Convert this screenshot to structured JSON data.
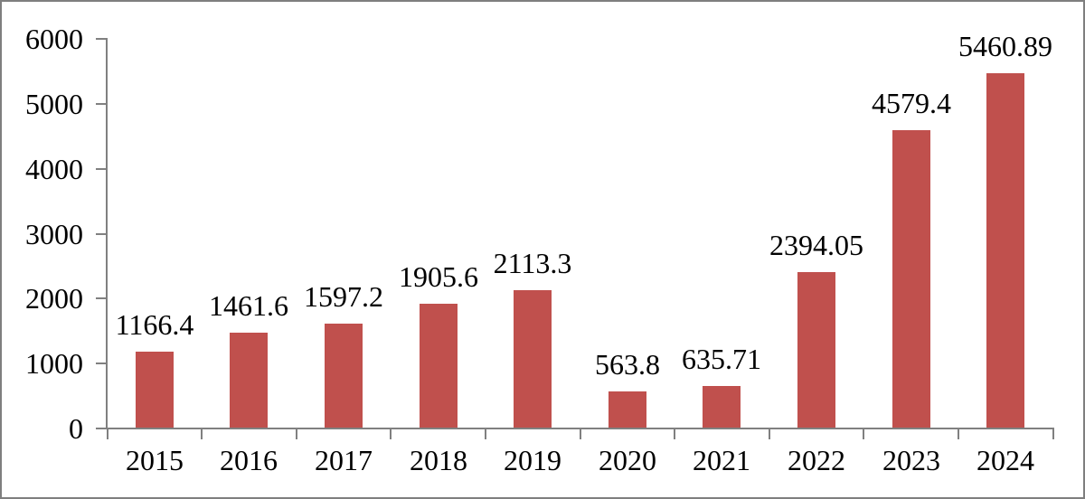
{
  "chart_data": {
    "type": "bar",
    "title": "",
    "xlabel": "",
    "ylabel": "",
    "categories": [
      "2015",
      "2016",
      "2017",
      "2018",
      "2019",
      "2020",
      "2021",
      "2022",
      "2023",
      "2024"
    ],
    "values": [
      1166.4,
      1461.6,
      1597.2,
      1905.6,
      2113.3,
      563.8,
      635.71,
      2394.05,
      4579.4,
      5460.89
    ],
    "data_labels": [
      "1166.4",
      "1461.6",
      "1597.2",
      "1905.6",
      "2113.3",
      "563.8",
      "635.71",
      "2394.05",
      "4579.4",
      "5460.89"
    ],
    "ylim": [
      0,
      6000
    ],
    "y_ticks": [
      0,
      1000,
      2000,
      3000,
      4000,
      5000,
      6000
    ],
    "y_tick_labels": [
      "0",
      "1000",
      "2000",
      "3000",
      "4000",
      "5000",
      "6000"
    ],
    "grid": false,
    "legend": "none",
    "colors": {
      "bar": "#C0504D",
      "axis": "#808080",
      "text": "#000000",
      "frame_border": "#7F7F7F",
      "background": "#FFFFFF"
    }
  }
}
